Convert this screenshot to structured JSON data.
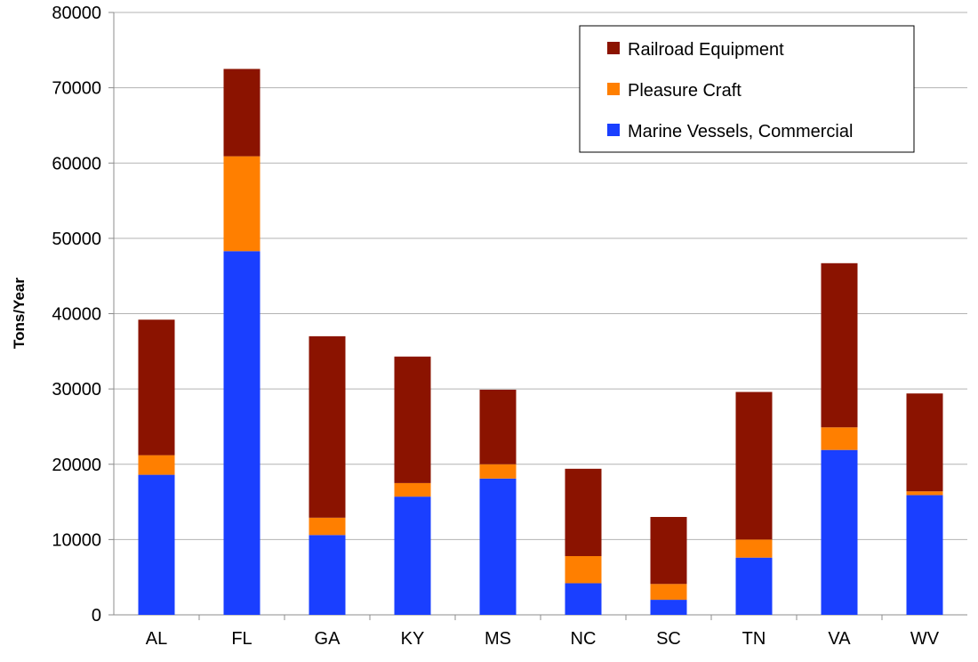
{
  "chart_data": {
    "type": "bar",
    "stacked": true,
    "title": "",
    "xlabel": "",
    "ylabel": "Tons/Year",
    "ylim": [
      0,
      80000
    ],
    "yticks": [
      0,
      10000,
      20000,
      30000,
      40000,
      50000,
      60000,
      70000,
      80000
    ],
    "grid": true,
    "legend_position": "top-right",
    "categories": [
      "AL",
      "FL",
      "GA",
      "KY",
      "MS",
      "NC",
      "SC",
      "TN",
      "VA",
      "WV"
    ],
    "series": [
      {
        "name": "Marine Vessels, Commercial",
        "color": "#1a3fff",
        "values": [
          18600,
          48300,
          10600,
          15700,
          18100,
          4200,
          2000,
          7600,
          21900,
          15900
        ]
      },
      {
        "name": "Pleasure Craft",
        "color": "#ff7f00",
        "values": [
          2600,
          12600,
          2300,
          1800,
          1900,
          3600,
          2100,
          2400,
          3000,
          500
        ]
      },
      {
        "name": "Railroad Equipment",
        "color": "#8b1300",
        "values": [
          18000,
          11600,
          24100,
          16800,
          9900,
          11600,
          8900,
          19600,
          21800,
          13000
        ]
      }
    ],
    "legend_order": [
      "Railroad Equipment",
      "Pleasure Craft",
      "Marine Vessels, Commercial"
    ]
  }
}
